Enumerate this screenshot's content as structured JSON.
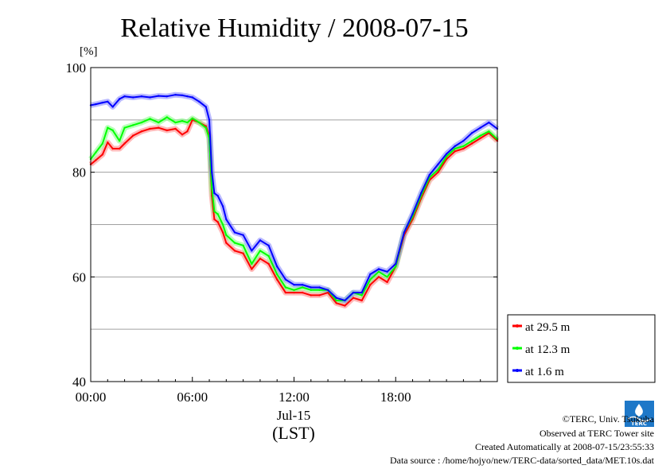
{
  "chart_data": {
    "type": "line",
    "title": "Relative Humidity / 2008-07-15",
    "ylabel": "[%]",
    "ylim": [
      40,
      100
    ],
    "yticks": [
      "100",
      "80",
      "60",
      "40"
    ],
    "xlim": [
      "00:00",
      "24:00"
    ],
    "xticks": [
      "00:00",
      "06:00",
      "12:00",
      "18:00"
    ],
    "xdate": "Jul-15",
    "xlabel": "(LST)",
    "grid": true,
    "legend_position": "right-bottom-outside",
    "series": [
      {
        "name": "at 29.5 m",
        "color": "#ff0000",
        "x": [
          0,
          0.3,
          0.7,
          1.0,
          1.3,
          1.7,
          2.0,
          2.5,
          3.0,
          3.5,
          4.0,
          4.5,
          5.0,
          5.4,
          5.7,
          6.0,
          6.4,
          6.8,
          7.0,
          7.15,
          7.3,
          7.5,
          7.8,
          8.0,
          8.5,
          9.0,
          9.5,
          10.0,
          10.5,
          11.0,
          11.5,
          12.0,
          12.5,
          13.0,
          13.5,
          14.0,
          14.5,
          15.0,
          15.5,
          16.0,
          16.5,
          17.0,
          17.5,
          18.0,
          18.5,
          19.0,
          19.5,
          20.0,
          20.5,
          21.0,
          21.5,
          22.0,
          22.5,
          23.0,
          23.5,
          24.0
        ],
        "values": [
          81.5,
          82.3,
          83.4,
          85.7,
          84.5,
          84.5,
          85.5,
          87.0,
          87.8,
          88.3,
          88.5,
          88.0,
          88.3,
          87.2,
          87.8,
          90.0,
          89.5,
          88.8,
          87.0,
          75.5,
          71.0,
          70.5,
          68.5,
          66.5,
          65.0,
          64.5,
          61.5,
          63.5,
          62.5,
          59.5,
          57.0,
          57.0,
          57.0,
          56.5,
          56.5,
          57.0,
          55.0,
          54.5,
          56.0,
          55.5,
          58.5,
          60.0,
          59.0,
          62.0,
          68.0,
          71.0,
          75.0,
          78.5,
          80.0,
          82.5,
          84.0,
          84.5,
          85.5,
          86.5,
          87.5,
          86.0
        ]
      },
      {
        "name": "at 12.3 m",
        "color": "#00ff00",
        "x": [
          0,
          0.3,
          0.7,
          1.0,
          1.3,
          1.7,
          2.0,
          2.5,
          3.0,
          3.5,
          4.0,
          4.5,
          5.0,
          5.4,
          5.7,
          6.0,
          6.4,
          6.8,
          7.0,
          7.15,
          7.3,
          7.5,
          7.8,
          8.0,
          8.5,
          9.0,
          9.5,
          10.0,
          10.5,
          11.0,
          11.5,
          12.0,
          12.5,
          13.0,
          13.5,
          14.0,
          14.5,
          15.0,
          15.5,
          16.0,
          16.5,
          17.0,
          17.5,
          18.0,
          18.5,
          19.0,
          19.5,
          20.0,
          20.5,
          21.0,
          21.5,
          22.0,
          22.5,
          23.0,
          23.5,
          24.0
        ],
        "values": [
          82.5,
          83.8,
          85.5,
          88.5,
          88.0,
          86.0,
          88.5,
          89.0,
          89.5,
          90.2,
          89.5,
          90.5,
          89.5,
          89.8,
          89.5,
          90.3,
          89.5,
          88.5,
          86.5,
          77.0,
          72.5,
          72.0,
          70.0,
          68.0,
          66.5,
          66.0,
          62.5,
          65.0,
          64.0,
          60.5,
          58.0,
          57.5,
          58.0,
          57.5,
          57.5,
          57.5,
          55.5,
          55.5,
          57.0,
          56.5,
          59.5,
          61.0,
          60.0,
          62.0,
          68.5,
          71.5,
          75.5,
          79.0,
          80.5,
          83.0,
          84.5,
          85.0,
          86.0,
          87.0,
          87.8,
          86.3
        ]
      },
      {
        "name": "at 1.6 m",
        "color": "#0000ff",
        "x": [
          0,
          0.3,
          0.7,
          1.0,
          1.3,
          1.7,
          2.0,
          2.5,
          3.0,
          3.5,
          4.0,
          4.5,
          5.0,
          5.4,
          5.7,
          6.0,
          6.4,
          6.8,
          7.0,
          7.15,
          7.3,
          7.5,
          7.8,
          8.0,
          8.5,
          9.0,
          9.5,
          10.0,
          10.5,
          11.0,
          11.5,
          12.0,
          12.5,
          13.0,
          13.5,
          14.0,
          14.5,
          15.0,
          15.5,
          16.0,
          16.5,
          17.0,
          17.5,
          18.0,
          18.5,
          19.0,
          19.5,
          20.0,
          20.5,
          21.0,
          21.5,
          22.0,
          22.5,
          23.0,
          23.5,
          24.0
        ],
        "values": [
          92.8,
          93.0,
          93.3,
          93.5,
          92.5,
          94.0,
          94.5,
          94.3,
          94.5,
          94.3,
          94.6,
          94.5,
          94.8,
          94.7,
          94.5,
          94.3,
          93.5,
          92.5,
          90.0,
          80.0,
          76.0,
          75.5,
          73.5,
          71.0,
          68.5,
          68.0,
          65.0,
          67.0,
          66.0,
          62.0,
          59.5,
          58.5,
          58.5,
          58.0,
          58.0,
          57.5,
          56.0,
          55.5,
          57.0,
          57.0,
          60.5,
          61.5,
          61.0,
          62.5,
          68.5,
          72.0,
          76.0,
          79.5,
          81.5,
          83.5,
          85.0,
          86.0,
          87.5,
          88.5,
          89.5,
          88.3
        ]
      }
    ]
  },
  "credits": [
    "©TERC, Univ. Tsukuba",
    "Observed at TERC Tower site",
    "Created Automatically at 2008-07-15/23:55:33",
    "Data source : /home/hojyo/new/TERC-data/sorted_data/MET.10s.dat"
  ],
  "logo_text": "TERC"
}
